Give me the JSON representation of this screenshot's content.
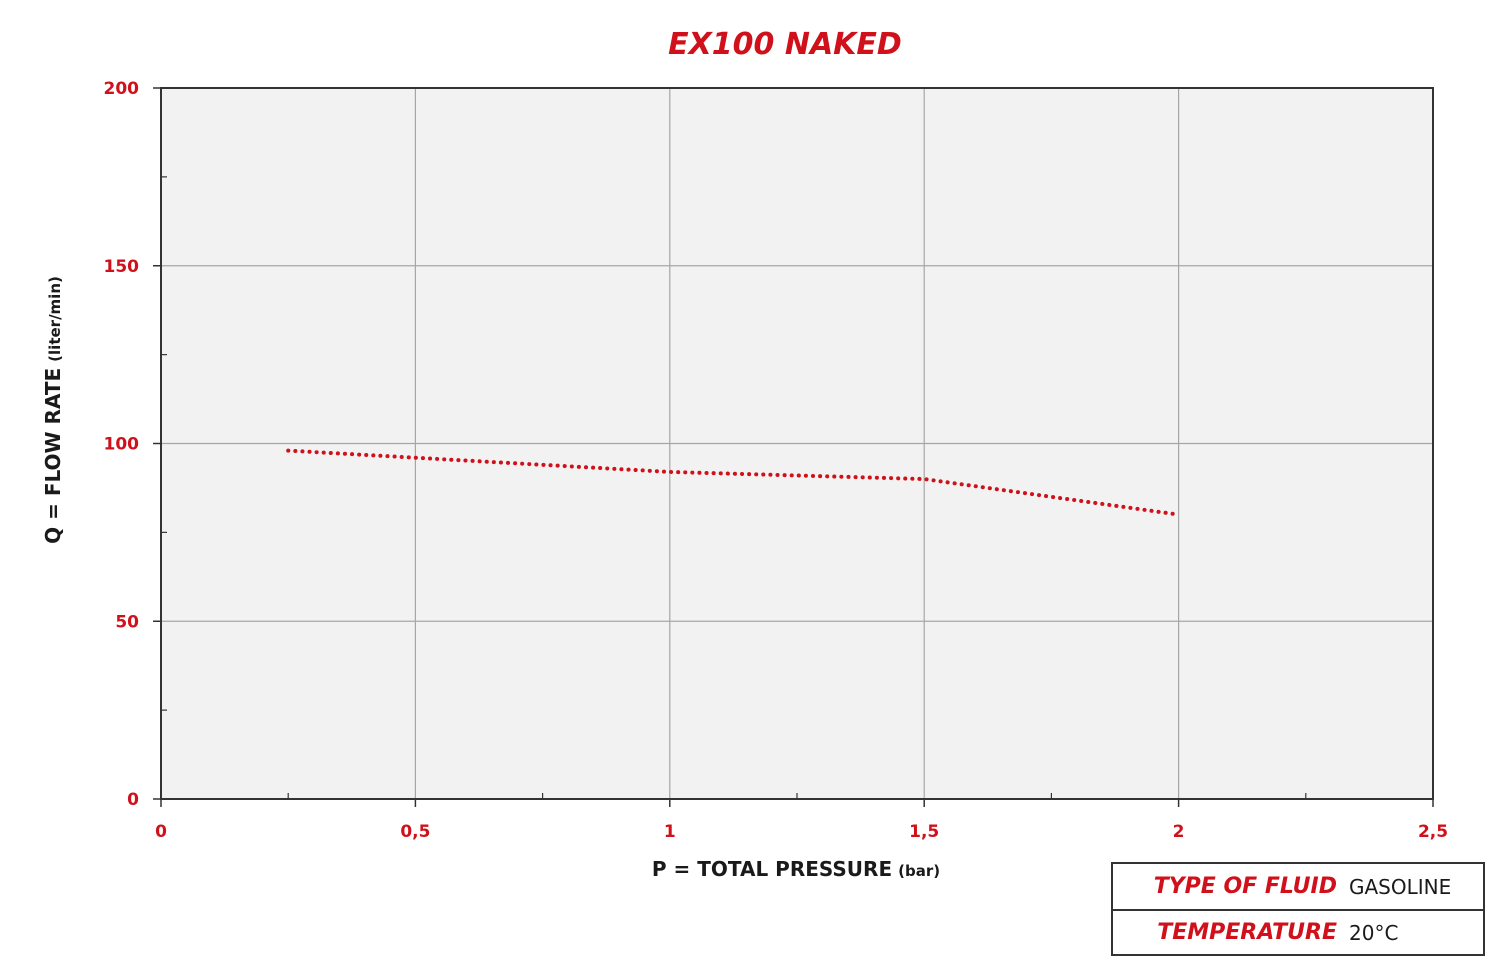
{
  "chart_data": {
    "type": "line",
    "title": "EX100 NAKED",
    "xlabel": "P = TOTAL PRESSURE",
    "xlabel_unit": "(bar)",
    "ylabel": "Q = FLOW RATE",
    "ylabel_unit": "(liter/min)",
    "xlim": [
      0,
      2.5
    ],
    "ylim": [
      0,
      200
    ],
    "x_ticks": [
      0,
      0.5,
      1,
      1.5,
      2,
      2.5
    ],
    "x_tick_labels": [
      "0",
      "0,5",
      "1",
      "1,5",
      "2",
      "2,5"
    ],
    "y_ticks": [
      0,
      50,
      100,
      150,
      200
    ],
    "y_tick_labels": [
      "0",
      "50",
      "100",
      "150",
      "200"
    ],
    "grid": true,
    "series": [
      {
        "style": "dotted",
        "color": "#d0111b",
        "x": [
          0.25,
          0.5,
          1.0,
          1.5,
          2.0
        ],
        "y": [
          98,
          96,
          92,
          90,
          80
        ]
      }
    ]
  },
  "info": {
    "fluid_label": "TYPE OF FLUID",
    "fluid_value": "GASOLINE",
    "temperature_label": "TEMPERATURE",
    "temperature_value": "20°C"
  },
  "colors": {
    "accent": "#d0111b",
    "plot_background": "#f2f2f2",
    "grid": "#a6a6a6",
    "axis": "#333333",
    "text": "#1a1a1a"
  }
}
